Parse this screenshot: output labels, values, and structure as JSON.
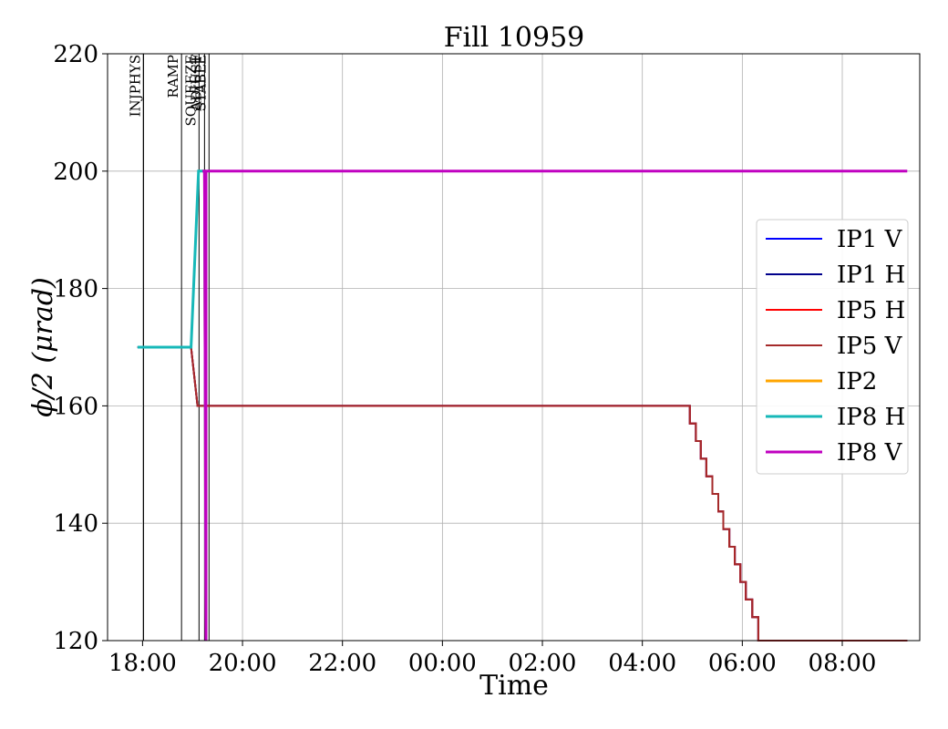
{
  "chart_data": {
    "type": "line",
    "title": "Fill 10959",
    "xlabel": "Time",
    "ylabel": "ϕ/2 (μrad)",
    "x_unit": "hours (clock time)",
    "xlim": [
      17.3,
      33.55
    ],
    "ylim": [
      120,
      220
    ],
    "yticks": [
      120,
      140,
      160,
      180,
      200,
      220
    ],
    "xticks": [
      {
        "t": 18,
        "label": "18:00"
      },
      {
        "t": 20,
        "label": "20:00"
      },
      {
        "t": 22,
        "label": "22:00"
      },
      {
        "t": 24,
        "label": "00:00"
      },
      {
        "t": 26,
        "label": "02:00"
      },
      {
        "t": 28,
        "label": "04:00"
      },
      {
        "t": 30,
        "label": "06:00"
      },
      {
        "t": 32,
        "label": "08:00"
      }
    ],
    "grid": true,
    "legend_position": "right",
    "beam_modes": [
      {
        "label": "INJPHYS",
        "t": 18.02
      },
      {
        "label": "RAMP",
        "t": 18.78
      },
      {
        "label": "SQUEEZE",
        "t": 19.13
      },
      {
        "label": "ADJUST",
        "t": 19.24
      },
      {
        "label": "STABLE",
        "t": 19.33
      }
    ],
    "series": [
      {
        "name": "IP1 V",
        "color": "#0000ff",
        "width": 2,
        "points": [
          [
            17.9,
            170
          ],
          [
            18.97,
            170
          ],
          [
            19.1,
            160
          ],
          [
            19.3,
            160
          ],
          [
            28.95,
            160
          ],
          [
            28.95,
            157
          ],
          [
            29.07,
            157
          ],
          [
            29.07,
            154
          ],
          [
            29.17,
            154
          ],
          [
            29.17,
            151
          ],
          [
            29.28,
            151
          ],
          [
            29.28,
            148
          ],
          [
            29.4,
            148
          ],
          [
            29.4,
            145
          ],
          [
            29.52,
            145
          ],
          [
            29.52,
            142
          ],
          [
            29.62,
            142
          ],
          [
            29.62,
            139
          ],
          [
            29.74,
            139
          ],
          [
            29.74,
            136
          ],
          [
            29.85,
            136
          ],
          [
            29.85,
            133
          ],
          [
            29.96,
            133
          ],
          [
            29.96,
            130
          ],
          [
            30.07,
            130
          ],
          [
            30.07,
            127
          ],
          [
            30.2,
            127
          ],
          [
            30.2,
            124
          ],
          [
            30.32,
            124
          ],
          [
            30.32,
            120
          ],
          [
            33.3,
            120
          ]
        ]
      },
      {
        "name": "IP1 H",
        "color": "#00008b",
        "width": 2,
        "points": [
          [
            17.9,
            170
          ],
          [
            18.97,
            170
          ],
          [
            19.1,
            160
          ],
          [
            19.3,
            160
          ],
          [
            28.95,
            160
          ],
          [
            28.95,
            157
          ],
          [
            29.07,
            157
          ],
          [
            29.07,
            154
          ],
          [
            29.17,
            154
          ],
          [
            29.17,
            151
          ],
          [
            29.28,
            151
          ],
          [
            29.28,
            148
          ],
          [
            29.4,
            148
          ],
          [
            29.4,
            145
          ],
          [
            29.52,
            145
          ],
          [
            29.52,
            142
          ],
          [
            29.62,
            142
          ],
          [
            29.62,
            139
          ],
          [
            29.74,
            139
          ],
          [
            29.74,
            136
          ],
          [
            29.85,
            136
          ],
          [
            29.85,
            133
          ],
          [
            29.96,
            133
          ],
          [
            29.96,
            130
          ],
          [
            30.07,
            130
          ],
          [
            30.07,
            127
          ],
          [
            30.2,
            127
          ],
          [
            30.2,
            124
          ],
          [
            30.32,
            124
          ],
          [
            30.32,
            120
          ],
          [
            33.3,
            120
          ]
        ]
      },
      {
        "name": "IP5 H",
        "color": "#ff0000",
        "width": 2,
        "points": [
          [
            17.9,
            170
          ],
          [
            18.97,
            170
          ],
          [
            19.1,
            160
          ],
          [
            19.3,
            160
          ],
          [
            28.95,
            160
          ],
          [
            28.95,
            157
          ],
          [
            29.07,
            157
          ],
          [
            29.07,
            154
          ],
          [
            29.17,
            154
          ],
          [
            29.17,
            151
          ],
          [
            29.28,
            151
          ],
          [
            29.28,
            148
          ],
          [
            29.4,
            148
          ],
          [
            29.4,
            145
          ],
          [
            29.52,
            145
          ],
          [
            29.52,
            142
          ],
          [
            29.62,
            142
          ],
          [
            29.62,
            139
          ],
          [
            29.74,
            139
          ],
          [
            29.74,
            136
          ],
          [
            29.85,
            136
          ],
          [
            29.85,
            133
          ],
          [
            29.96,
            133
          ],
          [
            29.96,
            130
          ],
          [
            30.07,
            130
          ],
          [
            30.07,
            127
          ],
          [
            30.2,
            127
          ],
          [
            30.2,
            124
          ],
          [
            30.32,
            124
          ],
          [
            30.32,
            120
          ],
          [
            33.3,
            120
          ]
        ]
      },
      {
        "name": "IP5 V",
        "color": "#a52a2a",
        "width": 2,
        "points": [
          [
            17.9,
            170
          ],
          [
            18.97,
            170
          ],
          [
            19.1,
            160
          ],
          [
            19.3,
            160
          ],
          [
            28.95,
            160
          ],
          [
            28.95,
            157
          ],
          [
            29.07,
            157
          ],
          [
            29.07,
            154
          ],
          [
            29.17,
            154
          ],
          [
            29.17,
            151
          ],
          [
            29.28,
            151
          ],
          [
            29.28,
            148
          ],
          [
            29.4,
            148
          ],
          [
            29.4,
            145
          ],
          [
            29.52,
            145
          ],
          [
            29.52,
            142
          ],
          [
            29.62,
            142
          ],
          [
            29.62,
            139
          ],
          [
            29.74,
            139
          ],
          [
            29.74,
            136
          ],
          [
            29.85,
            136
          ],
          [
            29.85,
            133
          ],
          [
            29.96,
            133
          ],
          [
            29.96,
            130
          ],
          [
            30.07,
            130
          ],
          [
            30.07,
            127
          ],
          [
            30.2,
            127
          ],
          [
            30.2,
            124
          ],
          [
            30.32,
            124
          ],
          [
            30.32,
            120
          ],
          [
            33.3,
            120
          ]
        ]
      },
      {
        "name": "IP2",
        "color": "#ffa500",
        "width": 3,
        "points": [
          [
            19.2,
            200
          ],
          [
            19.24,
            200
          ],
          [
            19.27,
            120
          ]
        ]
      },
      {
        "name": "IP8 H",
        "color": "#17b8b8",
        "width": 3,
        "points": [
          [
            17.9,
            170
          ],
          [
            18.97,
            170
          ],
          [
            19.12,
            200
          ],
          [
            19.24,
            200
          ],
          [
            19.27,
            120
          ]
        ]
      },
      {
        "name": "IP8 V",
        "color": "#c000c0",
        "width": 3,
        "points": [
          [
            19.2,
            200
          ],
          [
            19.24,
            200
          ],
          [
            19.27,
            120
          ],
          [
            19.27,
            200
          ],
          [
            33.3,
            200
          ]
        ]
      }
    ]
  }
}
